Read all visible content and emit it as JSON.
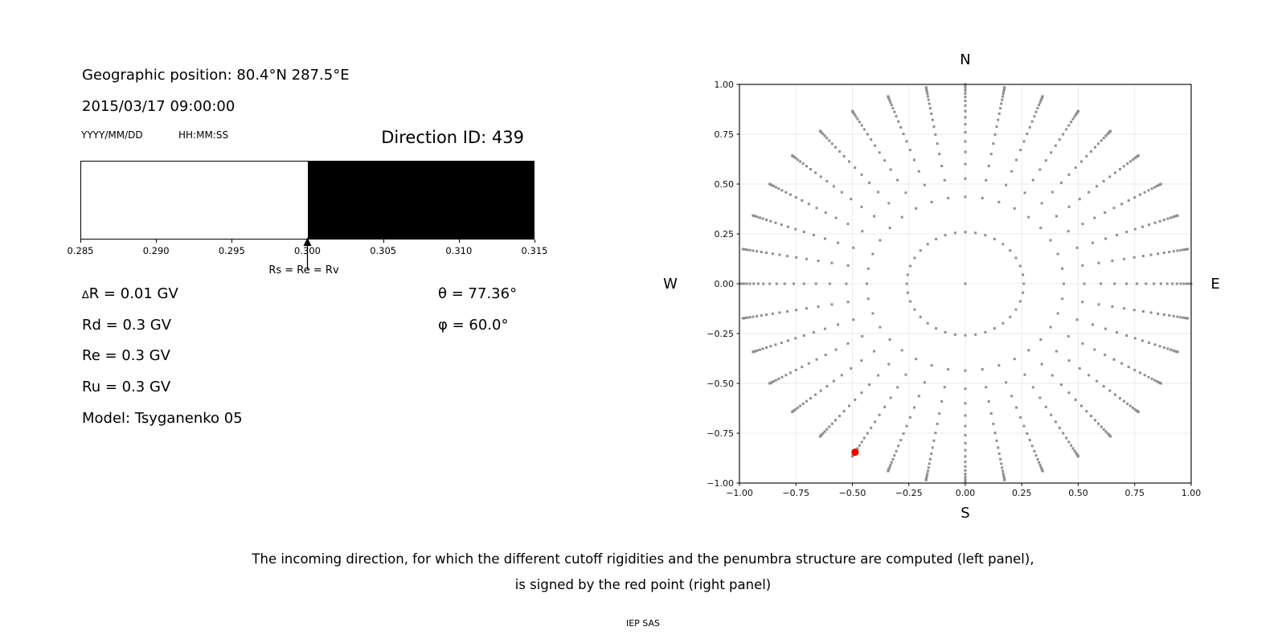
{
  "left_panel": {
    "geo_position": "Geographic position: 80.4°N 287.5°E",
    "datetime": "2015/03/17 09:00:00",
    "date_format_label": "YYYY/MM/DD",
    "time_format_label": "HH:MM:SS",
    "direction_id_label": "Direction ID: 439",
    "delta_symbol": "∆",
    "delta_rest": "R = 0.01 GV",
    "params": [
      "Rd = 0.3 GV",
      "Re = 0.3 GV",
      "Ru = 0.3 GV",
      "Model: Tsyganenko 05"
    ],
    "theta_label": "θ = 77.36°",
    "phi_label": "φ = 60.0°"
  },
  "chart_data": [
    {
      "type": "bar",
      "name": "penumbra-structure",
      "xlabel": "",
      "xlim": [
        0.285,
        0.315
      ],
      "tick_labels": [
        "0.285",
        "0.290",
        "0.295",
        "0.300",
        "0.305",
        "0.310",
        "0.315"
      ],
      "segments": [
        {
          "from": 0.285,
          "to": 0.3,
          "color": "#ffffff"
        },
        {
          "from": 0.3,
          "to": 0.315,
          "color": "#000000"
        }
      ],
      "annotation": {
        "x": 0.3,
        "text": "Rs = Re = Rv"
      }
    },
    {
      "type": "scatter",
      "name": "incoming-directions",
      "compass": {
        "top": "N",
        "bottom": "S",
        "left": "W",
        "right": "E"
      },
      "xlim": [
        -1,
        1
      ],
      "ylim": [
        -1,
        1
      ],
      "tick_values": [
        -1,
        -0.75,
        -0.5,
        -0.25,
        0,
        0.25,
        0.5,
        0.75,
        1
      ],
      "x_tick_labels": [
        "−1.00",
        "−0.75",
        "−0.50",
        "−0.25",
        "0.00",
        "0.25",
        "0.50",
        "0.75",
        "1.00"
      ],
      "y_tick_labels": [
        "1.00",
        "0.75",
        "0.50",
        "0.25",
        "0.00",
        "−0.25",
        "−0.50",
        "−0.75",
        "−1.00"
      ],
      "grid": true,
      "grid_color": "#eaeaea",
      "dot_color": "#8f8f8f",
      "spokes": {
        "azimuth_start_deg": 0,
        "azimuth_step_deg": 10,
        "count": 36,
        "radii": [
          0.259,
          0.436,
          0.527,
          0.6,
          0.661,
          0.714,
          0.76,
          0.8,
          0.835,
          0.866,
          0.894,
          0.917,
          0.937,
          0.954,
          0.968,
          0.98,
          0.989,
          0.995,
          0.999,
          1.0
        ]
      },
      "center_dot": {
        "x": 0,
        "y": 0
      },
      "red_point": {
        "x": -0.488,
        "y": -0.845,
        "r_data": 0.976,
        "azimuth_deg": 240,
        "color": "#ee0000"
      }
    }
  ],
  "caption": {
    "line1": "The incoming direction, for which the different cutoff rigidities and the penumbra structure are computed (left panel),",
    "line2": "is signed by the red point (right panel)"
  },
  "footer": "IEP SAS"
}
